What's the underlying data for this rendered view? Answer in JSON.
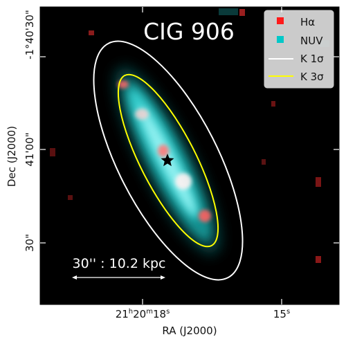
{
  "title": "CIG 906",
  "xlabel": "RA (J2000)",
  "ylabel": "Dec (J2000)",
  "x_ticks": [
    "21h20m18s",
    "15s"
  ],
  "x_ticks_parts": [
    {
      "h": "21",
      "hu": "h",
      "m": "20",
      "mu": "m",
      "s": "18",
      "su": "s"
    },
    {
      "s": "15",
      "su": "s"
    }
  ],
  "y_ticks": [
    "-1°40'30\"",
    "41'00\"",
    "30\""
  ],
  "legend": [
    {
      "label": "Hα",
      "marker": "square",
      "color": "#ff1a1a"
    },
    {
      "label": "NUV",
      "marker": "square",
      "color": "#00c8c8"
    },
    {
      "label": "K 1σ",
      "marker": "line",
      "color": "#ffffff"
    },
    {
      "label": "K 3σ",
      "marker": "line",
      "color": "#ffff00"
    }
  ],
  "scale_bar": {
    "text": "30'' : 10.2 kpc"
  },
  "colors": {
    "background": "#000000",
    "nuv": "#00e0e0",
    "halpha": "#ff5a5a",
    "k1sigma": "#ffffff",
    "k3sigma": "#ffff00",
    "center_marker": "#000000"
  },
  "center_marker": "star"
}
